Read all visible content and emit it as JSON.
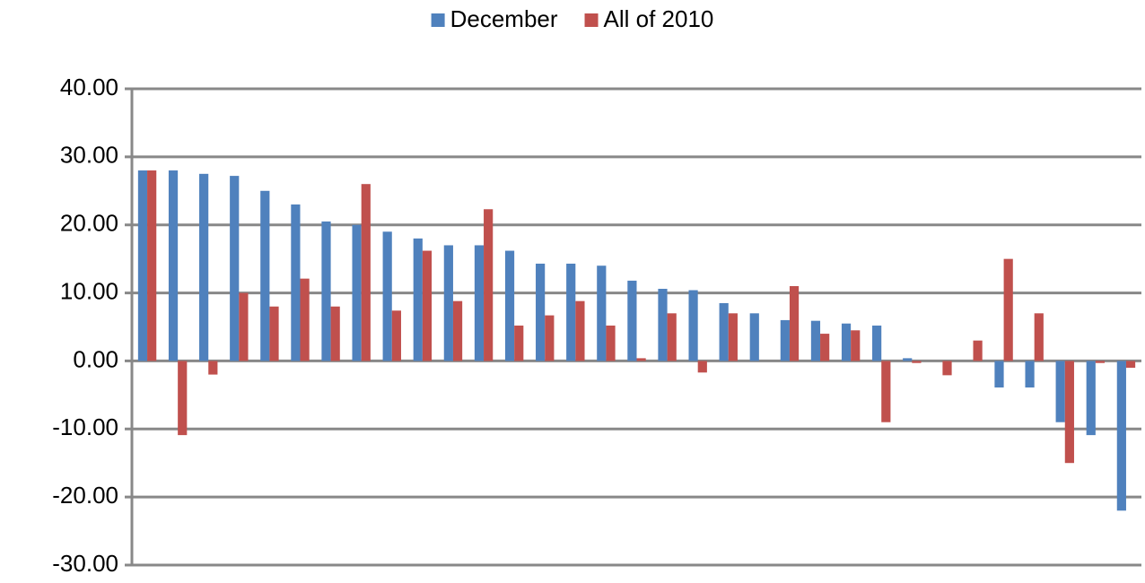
{
  "chart_data": {
    "type": "bar",
    "categories": [
      null,
      null,
      null,
      null,
      null,
      null,
      null,
      null,
      null,
      null,
      null,
      null,
      null,
      null,
      null,
      null,
      null,
      null,
      null,
      null,
      null,
      null,
      null,
      null,
      null,
      null,
      null,
      null,
      null,
      null,
      null,
      null,
      null
    ],
    "series": [
      {
        "name": "December",
        "color": "#4f81bd",
        "values": [
          28,
          28,
          27.5,
          27.2,
          25,
          23,
          20.5,
          20,
          19,
          18,
          17,
          17,
          16.2,
          14.3,
          14.3,
          14,
          11.8,
          10.6,
          10.4,
          8.5,
          7,
          6,
          5.9,
          5.5,
          5.2,
          0.4,
          0,
          0,
          -3.9,
          -3.9,
          -9,
          -10.9,
          -22
        ]
      },
      {
        "name": "All of 2010",
        "color": "#c0504d",
        "values": [
          28,
          -10.9,
          -2,
          10,
          8,
          12.1,
          8,
          26,
          7.4,
          16.2,
          8.8,
          22.3,
          5.2,
          6.7,
          8.8,
          5.2,
          0.4,
          7,
          -1.7,
          7,
          0,
          11,
          4,
          4.5,
          -9,
          -0.3,
          -2.1,
          3,
          15,
          7,
          -15,
          -0.3,
          -1
        ]
      }
    ],
    "ylim": [
      -30,
      40
    ],
    "yticks": [
      {
        "value": -30,
        "label": "-30.00"
      },
      {
        "value": -20,
        "label": "-20.00"
      },
      {
        "value": -10,
        "label": "-10.00"
      },
      {
        "value": 0,
        "label": "0.00"
      },
      {
        "value": 10,
        "label": "10.00"
      },
      {
        "value": 20,
        "label": "20.00"
      },
      {
        "value": 30,
        "label": "30.00"
      },
      {
        "value": 40,
        "label": "40.00"
      }
    ],
    "grid": true,
    "legend": "top"
  }
}
